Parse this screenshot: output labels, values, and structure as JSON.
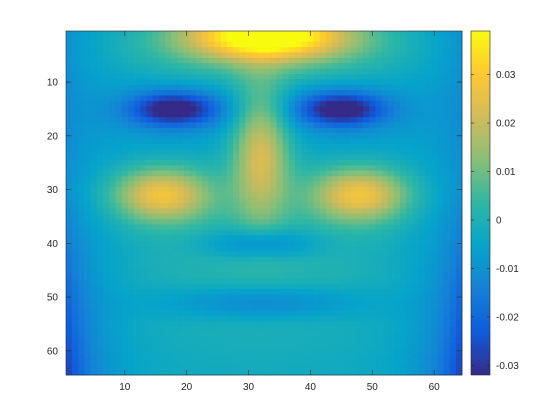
{
  "chart_data": {
    "type": "heatmap",
    "title": "",
    "xlabel": "",
    "ylabel": "",
    "grid_size": [
      64,
      64
    ],
    "xlim": [
      0.5,
      64.5
    ],
    "ylim": [
      0.5,
      64.5
    ],
    "y_direction": "reverse",
    "x_ticks": [
      10,
      20,
      30,
      40,
      50,
      60
    ],
    "x_tick_labels": [
      "10",
      "20",
      "30",
      "40",
      "50",
      "60"
    ],
    "y_ticks": [
      10,
      20,
      30,
      40,
      50,
      60
    ],
    "y_tick_labels": [
      "10",
      "20",
      "30",
      "40",
      "50",
      "60"
    ],
    "colormap": "parula",
    "colormap_stops": [
      "#352a87",
      "#0f5cdd",
      "#1481d6",
      "#06a4ca",
      "#2eb7a4",
      "#87bf77",
      "#d1bb59",
      "#fec832",
      "#f9fb0e"
    ],
    "clim": [
      -0.032,
      0.039
    ],
    "colorbar": {
      "location": "right",
      "ticks": [
        -0.03,
        -0.02,
        -0.01,
        0,
        0.01,
        0.02,
        0.03
      ],
      "tick_labels": [
        "-0.03",
        "-0.02",
        "-0.01",
        "0",
        "0.01",
        "0.02",
        "0.03"
      ]
    },
    "baseline_value": -0.004,
    "edge_falloff": -0.018,
    "features": [
      {
        "cx": 33,
        "cy": 1,
        "sx": 9,
        "sy": 3,
        "amp": 0.043
      },
      {
        "cx": 33,
        "cy": 4,
        "sx": 14,
        "sy": 4,
        "amp": 0.014
      },
      {
        "cx": 18,
        "cy": 15,
        "sx": 5,
        "sy": 2.2,
        "amp": -0.028
      },
      {
        "cx": 45,
        "cy": 15,
        "sx": 5,
        "sy": 2.2,
        "amp": -0.028
      },
      {
        "cx": 18,
        "cy": 16,
        "sx": 9,
        "sy": 4.5,
        "amp": -0.006
      },
      {
        "cx": 45,
        "cy": 16,
        "sx": 9,
        "sy": 4.5,
        "amp": -0.006
      },
      {
        "cx": 32,
        "cy": 23,
        "sx": 3.2,
        "sy": 9,
        "amp": 0.026
      },
      {
        "cx": 16,
        "cy": 31,
        "sx": 5.5,
        "sy": 3.5,
        "amp": 0.03
      },
      {
        "cx": 48,
        "cy": 31,
        "sx": 5.5,
        "sy": 3.5,
        "amp": 0.03
      },
      {
        "cx": 32,
        "cy": 40,
        "sx": 6,
        "sy": 2,
        "amp": -0.014
      },
      {
        "cx": 32,
        "cy": 51,
        "sx": 11,
        "sy": 2.2,
        "amp": -0.012
      },
      {
        "cx": 32,
        "cy": 44,
        "sx": 16,
        "sy": 12,
        "amp": 0.006
      }
    ]
  }
}
